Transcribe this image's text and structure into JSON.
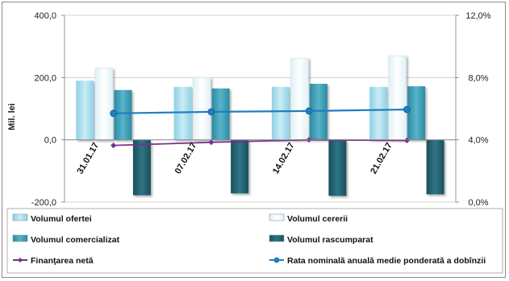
{
  "chart_data": {
    "type": "bar",
    "categories": [
      "31.01.17",
      "07.02.17",
      "14.02.17",
      "21.02.17"
    ],
    "ylabel": "Mil. lei",
    "ylim": [
      -200,
      400
    ],
    "y_ticks": [
      "400,0",
      "200,0",
      "0,0",
      "-200,0"
    ],
    "y2lim": [
      0,
      12
    ],
    "y2_ticks": [
      "12,0%",
      "8,0%",
      "4,0%",
      "0,0%"
    ],
    "grid": "horizontal",
    "legend_position": "bottom",
    "series": [
      {
        "name": "Volumul ofertei",
        "kind": "bar",
        "axis": "left",
        "color": "#a6dcec",
        "values": [
          190,
          170,
          170,
          170
        ]
      },
      {
        "name": "Volumul cererii",
        "kind": "bar",
        "axis": "left",
        "color": "#eef8fb",
        "values": [
          230,
          200,
          262,
          270
        ]
      },
      {
        "name": "Volumul comercializat",
        "kind": "bar",
        "axis": "left",
        "color": "#3d9cb3",
        "values": [
          160,
          165,
          180,
          172
        ]
      },
      {
        "name": "Volumul rascumparat",
        "kind": "bar",
        "axis": "left",
        "color": "#225f6e",
        "values": [
          -178,
          -172,
          -180,
          -175
        ]
      },
      {
        "name": "Finanţarea netă",
        "kind": "line",
        "axis": "left",
        "color": "#7a2f8a",
        "values": [
          -18,
          -8,
          0,
          -2
        ]
      },
      {
        "name": "Rata nominală anuală medie ponderată a dobînzii",
        "kind": "line",
        "axis": "right",
        "color": "#1f7fc1",
        "values": [
          5.7,
          5.8,
          5.85,
          5.95
        ]
      }
    ]
  }
}
